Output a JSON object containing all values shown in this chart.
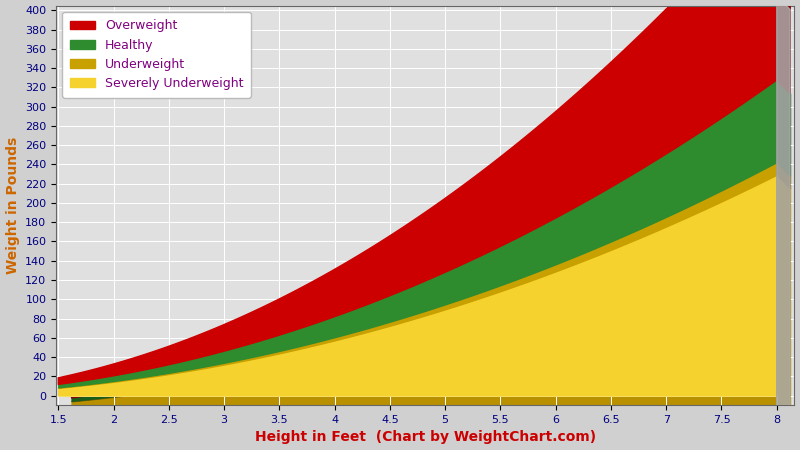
{
  "xlabel": "Height in Feet  (Chart by WeightChart.com)",
  "ylabel": "Weight in Pounds",
  "x_min": 1.5,
  "x_max": 8.0,
  "y_min": -10,
  "y_max": 405,
  "x_ticks": [
    1.5,
    2,
    2.5,
    3,
    3.5,
    4,
    4.5,
    5,
    5.5,
    6,
    6.5,
    7,
    7.5,
    8
  ],
  "y_ticks": [
    0,
    20,
    40,
    60,
    80,
    100,
    120,
    140,
    160,
    180,
    200,
    220,
    240,
    260,
    280,
    300,
    320,
    340,
    360,
    380,
    400
  ],
  "bg_color": "#d0d0d0",
  "plot_bg_color": "#e0e0e0",
  "grid_color": "#ffffff",
  "colors": {
    "severely_underweight": "#f5d22d",
    "underweight": "#c8a000",
    "healthy": "#2e8b2e",
    "overweight": "#cc0000"
  },
  "dark_colors": {
    "severely_underweight": "#b89000",
    "underweight": "#7a6000",
    "healthy": "#1a5c1a",
    "overweight": "#880000"
  },
  "right_panel_color": "#aaaaaa",
  "legend_labels": [
    "Overweight",
    "Healthy",
    "Underweight",
    "Severely Underweight"
  ],
  "legend_colors": [
    "#cc0000",
    "#2e8b2e",
    "#c8a000",
    "#f5d22d"
  ],
  "bmi_top": 40,
  "bmi_overweight_lower": 25,
  "bmi_healthy_lower": 18.5,
  "bmi_underweight_lower": 17.5,
  "bmi_severely_lower": 0,
  "xlabel_color": "#cc0000",
  "ylabel_color": "#cc6600",
  "tick_label_color": "#000080",
  "legend_text_color": "#800080",
  "axis_label_fontsize": 10,
  "tick_fontsize": 8,
  "legend_fontsize": 9,
  "depth_sx": 0.12,
  "depth_sy": -14
}
